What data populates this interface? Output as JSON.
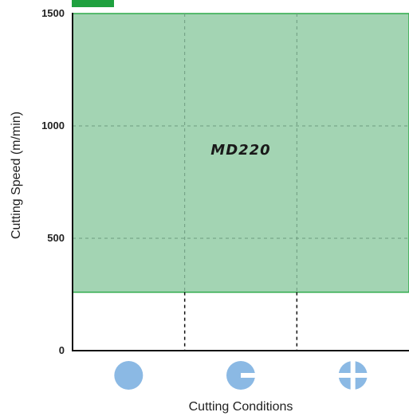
{
  "chart_data": {
    "type": "area",
    "title": "",
    "xlabel": "Cutting Conditions",
    "ylabel": "Cutting Speed (m/min)",
    "ylim": [
      0,
      1500
    ],
    "yticks": [
      0,
      500,
      1000,
      1500
    ],
    "grid": true,
    "categories": [
      "continuous-cut-icon",
      "light-interrupted-cut-icon",
      "heavy-interrupted-cut-icon"
    ],
    "series": [
      {
        "name": "MD220",
        "y_min": 260,
        "y_max": 1500,
        "color": "#a3d4b3",
        "edge_color": "#2eaa4a"
      }
    ],
    "legend_marker_color": "#1fa13f",
    "icon_color": "#8bb9e4"
  }
}
